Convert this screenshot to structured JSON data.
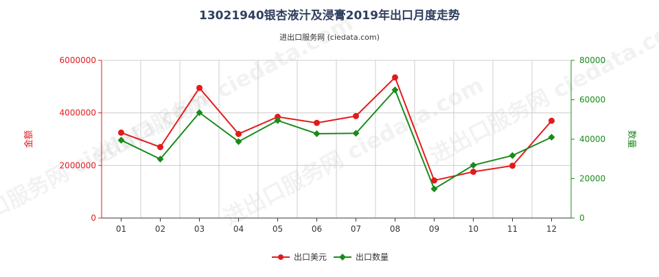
{
  "title": "13021940银杏液汁及浸膏2019年出口月度走势",
  "subtitle": "进出口服务网 (ciedata.com)",
  "watermark": "进出口服务网 ciedata.com",
  "colors": {
    "amount": "#e31a1c",
    "quantity": "#1a8a1a",
    "left_axis": "#e31a1c",
    "right_axis": "#1a8a1a",
    "grid": "#cccccc",
    "title": "#2f3f5f"
  },
  "chart_data": {
    "type": "line",
    "title": "13021940银杏液汁及浸膏2019年出口月度走势",
    "subtitle": "进出口服务网 (ciedata.com)",
    "categories": [
      "01",
      "02",
      "03",
      "04",
      "05",
      "06",
      "07",
      "08",
      "09",
      "10",
      "11",
      "12"
    ],
    "y_left": {
      "label": "金额",
      "ticks": [
        "0",
        "2000000",
        "4000000",
        "6000000"
      ],
      "range": [
        0,
        6000000
      ]
    },
    "y_right": {
      "label": "数量",
      "ticks": [
        "0",
        "20000",
        "40000",
        "60000",
        "80000"
      ],
      "range": [
        0,
        80000
      ]
    },
    "grid": true,
    "legend_position": "bottom-center",
    "series": [
      {
        "name": "出口美元",
        "axis": "left",
        "values": [
          3250000,
          2700000,
          4950000,
          3200000,
          3850000,
          3620000,
          3880000,
          5350000,
          1430000,
          1760000,
          1990000,
          3700000
        ]
      },
      {
        "name": "出口数量",
        "axis": "right",
        "values": [
          39500,
          29900,
          53500,
          38800,
          49500,
          42800,
          43000,
          65000,
          14800,
          26800,
          31700,
          41000
        ]
      }
    ]
  }
}
